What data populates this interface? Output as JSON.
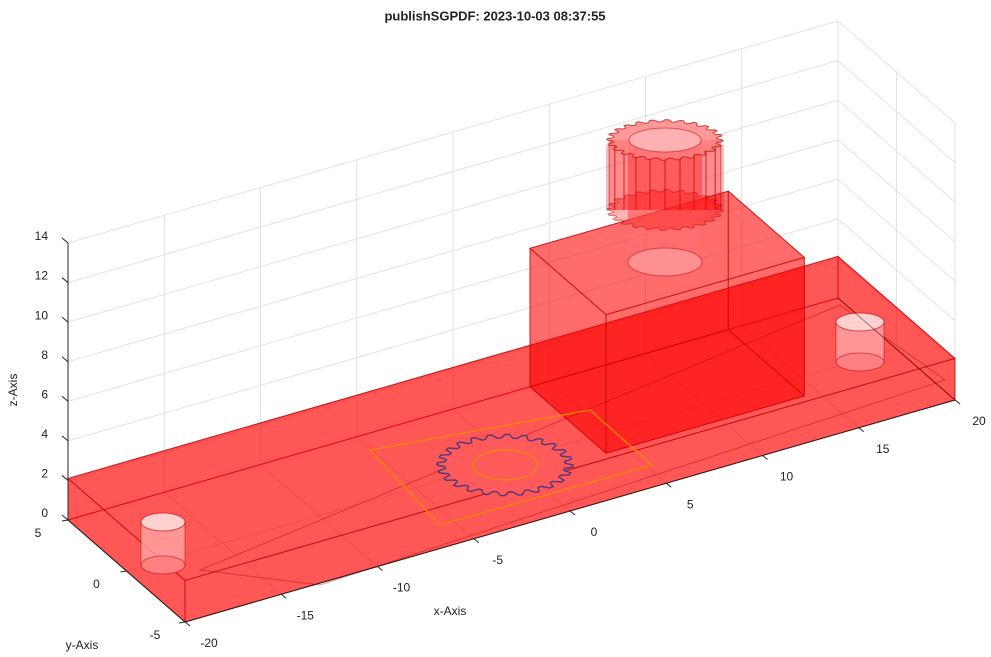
{
  "chart_data": {
    "type": "solid3d",
    "title": "publishSGPDF: 2023-10-03 08:37:55",
    "x_label": "x-Axis",
    "y_label": "y-Axis",
    "z_label": "z-Axis",
    "xlim": [
      -20,
      20
    ],
    "ylim": [
      -5,
      5
    ],
    "zlim": [
      0,
      14
    ],
    "xticks": [
      -20,
      -15,
      -10,
      -5,
      0,
      5,
      10,
      15,
      20
    ],
    "yticks": [
      -5,
      0,
      5
    ],
    "zticks": [
      0,
      2,
      4,
      6,
      8,
      10,
      12,
      14
    ],
    "grid": true,
    "color": "#ff0000"
  }
}
